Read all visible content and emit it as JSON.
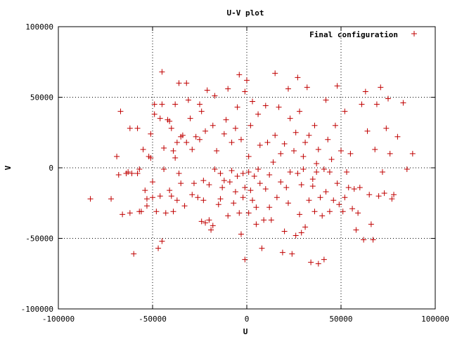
{
  "chart_data": {
    "type": "scatter",
    "title": "U-V plot",
    "xlabel": "U",
    "ylabel": "V",
    "xlim": [
      -100000,
      100000
    ],
    "ylim": [
      -100000,
      100000
    ],
    "xticks": [
      -100000,
      -50000,
      0,
      50000,
      100000
    ],
    "yticks": [
      -100000,
      -50000,
      0,
      50000,
      100000
    ],
    "xtick_labels": [
      "-100000",
      "-50000",
      "0",
      "50000",
      "100000"
    ],
    "ytick_labels": [
      "-100000",
      "-50000",
      "0",
      "50000",
      "100000"
    ],
    "grid": true,
    "legend_position": "top-right",
    "marker": "plus",
    "color": "#c00000",
    "series": [
      {
        "name": "Final configuration",
        "points": [
          [
            -83000,
            -22000
          ],
          [
            -72000,
            -22000
          ],
          [
            -69000,
            8000
          ],
          [
            -68000,
            -5000
          ],
          [
            -67000,
            40000
          ],
          [
            -66000,
            -33000
          ],
          [
            -64000,
            -4000
          ],
          [
            -63000,
            -3000
          ],
          [
            -62000,
            28000
          ],
          [
            -62000,
            -32000
          ],
          [
            -61000,
            -4000
          ],
          [
            -60000,
            -61000
          ],
          [
            -58000,
            -4000
          ],
          [
            -58000,
            28000
          ],
          [
            -57000,
            -31000
          ],
          [
            -57000,
            -1000
          ],
          [
            -56000,
            -31000
          ],
          [
            -55000,
            13000
          ],
          [
            -54000,
            -16000
          ],
          [
            -53000,
            -22000
          ],
          [
            -53000,
            -27000
          ],
          [
            -52000,
            8000
          ],
          [
            -51000,
            7000
          ],
          [
            -51000,
            24000
          ],
          [
            -50000,
            -10000
          ],
          [
            -50000,
            -21000
          ],
          [
            -49000,
            45000
          ],
          [
            -49000,
            38000
          ],
          [
            -48000,
            -31000
          ],
          [
            -47000,
            -57000
          ],
          [
            -46000,
            35000
          ],
          [
            -46000,
            -20000
          ],
          [
            -45000,
            -52000
          ],
          [
            -45000,
            68000
          ],
          [
            -45000,
            45000
          ],
          [
            -44000,
            -1000
          ],
          [
            -44000,
            14000
          ],
          [
            -43000,
            -32000
          ],
          [
            -42000,
            34000
          ],
          [
            -41000,
            33000
          ],
          [
            -41000,
            -16000
          ],
          [
            -40000,
            -20000
          ],
          [
            -40000,
            28000
          ],
          [
            -39000,
            12000
          ],
          [
            -39000,
            -31000
          ],
          [
            -38000,
            7000
          ],
          [
            -38000,
            45000
          ],
          [
            -37000,
            18000
          ],
          [
            -37000,
            -23000
          ],
          [
            -36000,
            -4000
          ],
          [
            -36000,
            60000
          ],
          [
            -35000,
            22000
          ],
          [
            -35000,
            -11000
          ],
          [
            -34000,
            23000
          ],
          [
            -33000,
            -27000
          ],
          [
            -32000,
            18000
          ],
          [
            -32000,
            60000
          ],
          [
            -31000,
            48000
          ],
          [
            -30000,
            35000
          ],
          [
            -29000,
            13000
          ],
          [
            -29000,
            -19000
          ],
          [
            -28000,
            -11000
          ],
          [
            -27000,
            22000
          ],
          [
            -26000,
            -21000
          ],
          [
            -25000,
            20000
          ],
          [
            -25000,
            45000
          ],
          [
            -24000,
            -38000
          ],
          [
            -24000,
            40000
          ],
          [
            -23000,
            -9000
          ],
          [
            -23000,
            -23000
          ],
          [
            -22000,
            26000
          ],
          [
            -22000,
            -39000
          ],
          [
            -21000,
            55000
          ],
          [
            -20000,
            -12000
          ],
          [
            -20000,
            -37000
          ],
          [
            -19000,
            -44000
          ],
          [
            -18000,
            -41000
          ],
          [
            -18000,
            30000
          ],
          [
            -17000,
            51000
          ],
          [
            -17000,
            -1000
          ],
          [
            -16000,
            12000
          ],
          [
            -15000,
            -26000
          ],
          [
            -14000,
            -4000
          ],
          [
            -14000,
            -22000
          ],
          [
            -13000,
            -14000
          ],
          [
            -12000,
            24000
          ],
          [
            -12000,
            -9000
          ],
          [
            -11000,
            34000
          ],
          [
            -10000,
            -34000
          ],
          [
            -10000,
            56000
          ],
          [
            -9000,
            -10000
          ],
          [
            -8000,
            18000
          ],
          [
            -8000,
            -2000
          ],
          [
            -7000,
            -25000
          ],
          [
            -6000,
            28000
          ],
          [
            -6000,
            -17000
          ],
          [
            -5000,
            -6000
          ],
          [
            -5000,
            43000
          ],
          [
            -4000,
            -32000
          ],
          [
            -4000,
            66000
          ],
          [
            -3000,
            -47000
          ],
          [
            -3000,
            20000
          ],
          [
            -2000,
            -21000
          ],
          [
            -2000,
            -4000
          ],
          [
            -1000,
            -14000
          ],
          [
            -1000,
            54000
          ],
          [
            -1000,
            -65000
          ],
          [
            0,
            62000
          ],
          [
            1000,
            -3000
          ],
          [
            1000,
            8000
          ],
          [
            1000,
            -32000
          ],
          [
            2000,
            -16000
          ],
          [
            2000,
            30000
          ],
          [
            3000,
            -23000
          ],
          [
            3000,
            47000
          ],
          [
            4000,
            -6000
          ],
          [
            5000,
            -28000
          ],
          [
            5000,
            -40000
          ],
          [
            6000,
            -1000
          ],
          [
            6000,
            38000
          ],
          [
            7000,
            -11000
          ],
          [
            7000,
            16000
          ],
          [
            8000,
            -57000
          ],
          [
            9000,
            -37000
          ],
          [
            10000,
            44000
          ],
          [
            10000,
            -15000
          ],
          [
            11000,
            18000
          ],
          [
            12000,
            -5000
          ],
          [
            12000,
            -28000
          ],
          [
            13000,
            -37000
          ],
          [
            14000,
            4000
          ],
          [
            15000,
            23000
          ],
          [
            15000,
            67000
          ],
          [
            16000,
            -21000
          ],
          [
            17000,
            43000
          ],
          [
            18000,
            -10000
          ],
          [
            18000,
            10000
          ],
          [
            19000,
            -60000
          ],
          [
            20000,
            17000
          ],
          [
            20000,
            -45000
          ],
          [
            21000,
            -14000
          ],
          [
            22000,
            56000
          ],
          [
            22000,
            -25000
          ],
          [
            23000,
            35000
          ],
          [
            23000,
            -3000
          ],
          [
            24000,
            -61000
          ],
          [
            25000,
            12000
          ],
          [
            26000,
            -48000
          ],
          [
            26000,
            25000
          ],
          [
            27000,
            -4000
          ],
          [
            27000,
            64000
          ],
          [
            28000,
            -33000
          ],
          [
            28000,
            40000
          ],
          [
            29000,
            -12000
          ],
          [
            29000,
            -46000
          ],
          [
            30000,
            8000
          ],
          [
            30000,
            -1000
          ],
          [
            31000,
            -42000
          ],
          [
            31000,
            18000
          ],
          [
            32000,
            57000
          ],
          [
            33000,
            -23000
          ],
          [
            33000,
            23000
          ],
          [
            34000,
            -67000
          ],
          [
            35000,
            -8000
          ],
          [
            35000,
            -13000
          ],
          [
            36000,
            30000
          ],
          [
            36000,
            -31000
          ],
          [
            37000,
            3000
          ],
          [
            37000,
            -3000
          ],
          [
            38000,
            -68000
          ],
          [
            38000,
            13000
          ],
          [
            39000,
            -21000
          ],
          [
            40000,
            -34000
          ],
          [
            41000,
            -1000
          ],
          [
            41000,
            -65000
          ],
          [
            42000,
            48000
          ],
          [
            42000,
            -17000
          ],
          [
            43000,
            20000
          ],
          [
            44000,
            -3000
          ],
          [
            44000,
            -31000
          ],
          [
            45000,
            6000
          ],
          [
            46000,
            -23000
          ],
          [
            47000,
            30000
          ],
          [
            48000,
            58000
          ],
          [
            48000,
            -11000
          ],
          [
            49000,
            -26000
          ],
          [
            50000,
            12000
          ],
          [
            51000,
            -31000
          ],
          [
            52000,
            40000
          ],
          [
            52000,
            -21000
          ],
          [
            53000,
            -3000
          ],
          [
            54000,
            -14000
          ],
          [
            55000,
            10000
          ],
          [
            56000,
            -29000
          ],
          [
            57000,
            -15000
          ],
          [
            58000,
            -44000
          ],
          [
            59000,
            -32000
          ],
          [
            60000,
            -14000
          ],
          [
            61000,
            45000
          ],
          [
            62000,
            -51000
          ],
          [
            63000,
            54000
          ],
          [
            64000,
            26000
          ],
          [
            65000,
            -19000
          ],
          [
            66000,
            -40000
          ],
          [
            67000,
            -51000
          ],
          [
            68000,
            13000
          ],
          [
            69000,
            45000
          ],
          [
            70000,
            -20000
          ],
          [
            71000,
            57000
          ],
          [
            72000,
            -3000
          ],
          [
            73000,
            -18000
          ],
          [
            74000,
            28000
          ],
          [
            75000,
            49000
          ],
          [
            76000,
            10000
          ],
          [
            77000,
            -22000
          ],
          [
            78000,
            -19000
          ],
          [
            80000,
            22000
          ],
          [
            83000,
            46000
          ],
          [
            85000,
            -1000
          ],
          [
            88000,
            10000
          ]
        ]
      }
    ]
  }
}
